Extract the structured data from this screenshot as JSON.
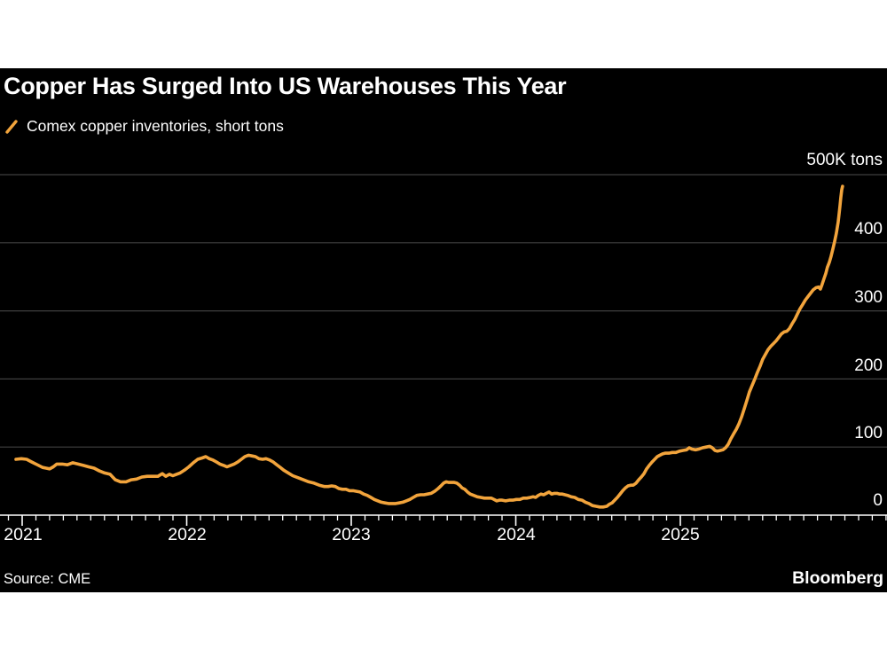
{
  "page": {
    "background": "#ffffff",
    "panel_background": "#000000"
  },
  "header": {
    "title": "Copper Has Surged Into US Warehouses This Year",
    "legend_label": "Comex copper inventories, short tons"
  },
  "footer": {
    "source": "Source: CME",
    "brand": "Bloomberg"
  },
  "chart_data": {
    "type": "line",
    "title": "Copper Has Surged Into US Warehouses This Year",
    "grid": "horizontal",
    "legend_position": "top-left",
    "background": "#000000",
    "gridline_color": "#3f3f3f",
    "axis_line_color": "#ffffff",
    "axis_label_color": "#ffffff",
    "y_range": [
      0,
      500
    ],
    "x_range": [
      2020.92,
      2026.27
    ],
    "y_ticks": [
      {
        "label": "500K tons",
        "value": 500
      },
      {
        "label": "400",
        "value": 400
      },
      {
        "label": "300",
        "value": 300
      },
      {
        "label": "200",
        "value": 200
      },
      {
        "label": "100",
        "value": 100
      },
      {
        "label": "0",
        "value": 0
      }
    ],
    "x_ticks": [
      {
        "label": "2021",
        "value": 2021
      },
      {
        "label": "2022",
        "value": 2022
      },
      {
        "label": "2023",
        "value": 2023
      },
      {
        "label": "2024",
        "value": 2024
      },
      {
        "label": "2025",
        "value": 2025
      }
    ],
    "minor_tick_interval_years": 0.0833,
    "series": [
      {
        "name": "Comex copper inventories, short tons",
        "color": "#F2A43C",
        "unit": "thousand short tons",
        "points": [
          [
            2020.962,
            82
          ],
          [
            2020.995,
            83
          ],
          [
            2021.027,
            82
          ],
          [
            2021.059,
            78
          ],
          [
            2021.092,
            74
          ],
          [
            2021.124,
            70
          ],
          [
            2021.146,
            69
          ],
          [
            2021.167,
            68
          ],
          [
            2021.189,
            71
          ],
          [
            2021.21,
            75
          ],
          [
            2021.243,
            75
          ],
          [
            2021.275,
            74
          ],
          [
            2021.307,
            77
          ],
          [
            2021.34,
            75
          ],
          [
            2021.372,
            73
          ],
          [
            2021.404,
            71
          ],
          [
            2021.437,
            69
          ],
          [
            2021.469,
            65
          ],
          [
            2021.501,
            62
          ],
          [
            2021.534,
            60
          ],
          [
            2021.566,
            52
          ],
          [
            2021.598,
            49
          ],
          [
            2021.631,
            49
          ],
          [
            2021.663,
            52
          ],
          [
            2021.695,
            53
          ],
          [
            2021.728,
            56
          ],
          [
            2021.76,
            57
          ],
          [
            2021.792,
            57
          ],
          [
            2021.825,
            57
          ],
          [
            2021.852,
            61
          ],
          [
            2021.873,
            57
          ],
          [
            2021.895,
            60
          ],
          [
            2021.916,
            58
          ],
          [
            2021.938,
            60
          ],
          [
            2021.96,
            62
          ],
          [
            2021.986,
            66
          ],
          [
            2022.013,
            71
          ],
          [
            2022.04,
            77
          ],
          [
            2022.067,
            82
          ],
          [
            2022.094,
            84
          ],
          [
            2022.116,
            86
          ],
          [
            2022.137,
            83
          ],
          [
            2022.159,
            81
          ],
          [
            2022.181,
            78
          ],
          [
            2022.202,
            75
          ],
          [
            2022.224,
            73
          ],
          [
            2022.245,
            71
          ],
          [
            2022.267,
            73
          ],
          [
            2022.288,
            75
          ],
          [
            2022.31,
            78
          ],
          [
            2022.332,
            82
          ],
          [
            2022.353,
            86
          ],
          [
            2022.375,
            88
          ],
          [
            2022.396,
            87
          ],
          [
            2022.418,
            86
          ],
          [
            2022.439,
            83
          ],
          [
            2022.461,
            82
          ],
          [
            2022.482,
            83
          ],
          [
            2022.504,
            81
          ],
          [
            2022.526,
            78
          ],
          [
            2022.547,
            74
          ],
          [
            2022.569,
            70
          ],
          [
            2022.59,
            66
          ],
          [
            2022.617,
            62
          ],
          [
            2022.644,
            58
          ],
          [
            2022.677,
            55
          ],
          [
            2022.709,
            52
          ],
          [
            2022.741,
            49
          ],
          [
            2022.774,
            47
          ],
          [
            2022.806,
            44
          ],
          [
            2022.838,
            42
          ],
          [
            2022.86,
            42
          ],
          [
            2022.881,
            43
          ],
          [
            2022.903,
            42
          ],
          [
            2022.925,
            39
          ],
          [
            2022.946,
            38
          ],
          [
            2022.968,
            38
          ],
          [
            2022.989,
            36
          ],
          [
            2023.011,
            36
          ],
          [
            2023.032,
            35
          ],
          [
            2023.054,
            34
          ],
          [
            2023.075,
            31
          ],
          [
            2023.097,
            29
          ],
          [
            2023.119,
            26
          ],
          [
            2023.14,
            23
          ],
          [
            2023.162,
            21
          ],
          [
            2023.183,
            19
          ],
          [
            2023.205,
            18
          ],
          [
            2023.226,
            17
          ],
          [
            2023.248,
            17
          ],
          [
            2023.27,
            17
          ],
          [
            2023.291,
            18
          ],
          [
            2023.313,
            19
          ],
          [
            2023.334,
            21
          ],
          [
            2023.356,
            23
          ],
          [
            2023.377,
            26
          ],
          [
            2023.399,
            29
          ],
          [
            2023.421,
            30
          ],
          [
            2023.442,
            30
          ],
          [
            2023.464,
            31
          ],
          [
            2023.485,
            32
          ],
          [
            2023.507,
            35
          ],
          [
            2023.528,
            39
          ],
          [
            2023.545,
            43
          ],
          [
            2023.561,
            47
          ],
          [
            2023.577,
            49
          ],
          [
            2023.593,
            48
          ],
          [
            2023.609,
            48
          ],
          [
            2023.626,
            48
          ],
          [
            2023.642,
            47
          ],
          [
            2023.658,
            44
          ],
          [
            2023.674,
            40
          ],
          [
            2023.69,
            38
          ],
          [
            2023.707,
            34
          ],
          [
            2023.723,
            31
          ],
          [
            2023.744,
            29
          ],
          [
            2023.766,
            27
          ],
          [
            2023.787,
            26
          ],
          [
            2023.809,
            25
          ],
          [
            2023.83,
            25
          ],
          [
            2023.852,
            25
          ],
          [
            2023.868,
            23
          ],
          [
            2023.884,
            21
          ],
          [
            2023.9,
            22
          ],
          [
            2023.917,
            22
          ],
          [
            2023.938,
            21
          ],
          [
            2023.96,
            22
          ],
          [
            2023.981,
            22
          ],
          [
            2024.003,
            23
          ],
          [
            2024.024,
            23
          ],
          [
            2024.046,
            25
          ],
          [
            2024.067,
            25
          ],
          [
            2024.089,
            26
          ],
          [
            2024.105,
            27
          ],
          [
            2024.121,
            26
          ],
          [
            2024.137,
            29
          ],
          [
            2024.153,
            31
          ],
          [
            2024.17,
            30
          ],
          [
            2024.186,
            32
          ],
          [
            2024.202,
            34
          ],
          [
            2024.218,
            31
          ],
          [
            2024.234,
            32
          ],
          [
            2024.25,
            32
          ],
          [
            2024.267,
            31
          ],
          [
            2024.283,
            31
          ],
          [
            2024.299,
            30
          ],
          [
            2024.315,
            29
          ],
          [
            2024.337,
            27
          ],
          [
            2024.358,
            26
          ],
          [
            2024.38,
            23
          ],
          [
            2024.402,
            22
          ],
          [
            2024.423,
            19
          ],
          [
            2024.445,
            17
          ],
          [
            2024.466,
            14
          ],
          [
            2024.488,
            13
          ],
          [
            2024.51,
            12
          ],
          [
            2024.531,
            12
          ],
          [
            2024.553,
            13
          ],
          [
            2024.569,
            16
          ],
          [
            2024.585,
            18
          ],
          [
            2024.601,
            22
          ],
          [
            2024.617,
            26
          ],
          [
            2024.634,
            31
          ],
          [
            2024.65,
            36
          ],
          [
            2024.666,
            40
          ],
          [
            2024.682,
            43
          ],
          [
            2024.698,
            44
          ],
          [
            2024.714,
            44
          ],
          [
            2024.731,
            47
          ],
          [
            2024.747,
            52
          ],
          [
            2024.763,
            56
          ],
          [
            2024.779,
            61
          ],
          [
            2024.795,
            68
          ],
          [
            2024.811,
            73
          ],
          [
            2024.828,
            78
          ],
          [
            2024.844,
            82
          ],
          [
            2024.86,
            86
          ],
          [
            2024.876,
            88
          ],
          [
            2024.892,
            90
          ],
          [
            2024.908,
            91
          ],
          [
            2024.93,
            91
          ],
          [
            2024.951,
            92
          ],
          [
            2024.973,
            92
          ],
          [
            2024.995,
            94
          ],
          [
            2025.016,
            95
          ],
          [
            2025.038,
            96
          ],
          [
            2025.054,
            99
          ],
          [
            2025.07,
            97
          ],
          [
            2025.092,
            96
          ],
          [
            2025.113,
            97
          ],
          [
            2025.135,
            99
          ],
          [
            2025.157,
            100
          ],
          [
            2025.178,
            101
          ],
          [
            2025.194,
            99
          ],
          [
            2025.21,
            95
          ],
          [
            2025.226,
            94
          ],
          [
            2025.243,
            95
          ],
          [
            2025.259,
            96
          ],
          [
            2025.275,
            99
          ],
          [
            2025.291,
            104
          ],
          [
            2025.307,
            112
          ],
          [
            2025.323,
            119
          ],
          [
            2025.34,
            126
          ],
          [
            2025.356,
            134
          ],
          [
            2025.372,
            144
          ],
          [
            2025.388,
            156
          ],
          [
            2025.404,
            168
          ],
          [
            2025.42,
            181
          ],
          [
            2025.437,
            191
          ],
          [
            2025.453,
            200
          ],
          [
            2025.469,
            210
          ],
          [
            2025.485,
            219
          ],
          [
            2025.501,
            229
          ],
          [
            2025.517,
            236
          ],
          [
            2025.533,
            243
          ],
          [
            2025.55,
            248
          ],
          [
            2025.566,
            252
          ],
          [
            2025.582,
            256
          ],
          [
            2025.598,
            261
          ],
          [
            2025.614,
            266
          ],
          [
            2025.63,
            269
          ],
          [
            2025.647,
            270
          ],
          [
            2025.663,
            274
          ],
          [
            2025.679,
            281
          ],
          [
            2025.695,
            287
          ],
          [
            2025.711,
            295
          ],
          [
            2025.727,
            303
          ],
          [
            2025.743,
            309
          ],
          [
            2025.76,
            316
          ],
          [
            2025.776,
            321
          ],
          [
            2025.792,
            326
          ],
          [
            2025.808,
            331
          ],
          [
            2025.824,
            334
          ],
          [
            2025.84,
            335
          ],
          [
            2025.851,
            332
          ],
          [
            2025.862,
            339
          ],
          [
            2025.873,
            347
          ],
          [
            2025.884,
            355
          ],
          [
            2025.894,
            364
          ],
          [
            2025.905,
            371
          ],
          [
            2025.916,
            380
          ],
          [
            2025.927,
            391
          ],
          [
            2025.937,
            401
          ],
          [
            2025.948,
            414
          ],
          [
            2025.959,
            430
          ],
          [
            2025.964,
            440
          ],
          [
            2025.97,
            453
          ],
          [
            2025.975,
            466
          ],
          [
            2025.981,
            478
          ],
          [
            2025.986,
            483
          ]
        ]
      }
    ]
  }
}
